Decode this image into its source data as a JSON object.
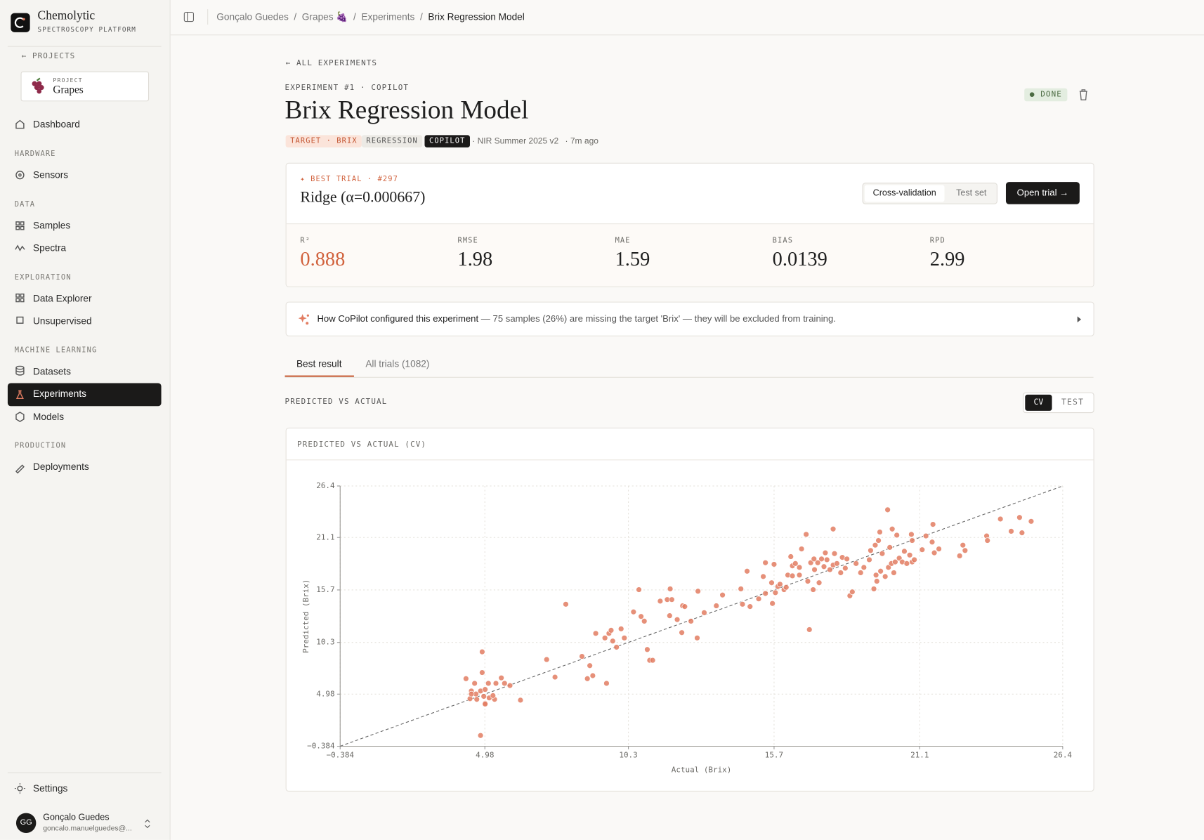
{
  "brand": {
    "name": "Chemolytic",
    "tagline": "SPECTROSCOPY PLATFORM"
  },
  "sidebar": {
    "back": "PROJECTS",
    "project": {
      "label": "PROJECT",
      "name": "Grapes"
    },
    "dashboard": "Dashboard",
    "sections": [
      {
        "title": "HARDWARE",
        "items": [
          "Sensors"
        ]
      },
      {
        "title": "DATA",
        "items": [
          "Samples",
          "Spectra"
        ]
      },
      {
        "title": "EXPLORATION",
        "items": [
          "Data Explorer",
          "Unsupervised"
        ]
      },
      {
        "title": "MACHINE LEARNING",
        "items": [
          "Datasets",
          "Experiments",
          "Models"
        ]
      },
      {
        "title": "PRODUCTION",
        "items": [
          "Deployments"
        ]
      }
    ],
    "settings": "Settings",
    "user": {
      "initials": "GG",
      "name": "Gonçalo Guedes",
      "email": "goncalo.manuelguedes@..."
    }
  },
  "breadcrumb": [
    "Gonçalo Guedes",
    "Grapes 🍇",
    "Experiments",
    "Brix Regression Model"
  ],
  "header": {
    "back": "ALL EXPERIMENTS",
    "eyebrow": "EXPERIMENT #1 · COPILOT",
    "title": "Brix Regression Model",
    "status": "DONE",
    "tags": [
      "TARGET · BRIX",
      "REGRESSION",
      "COPILOT"
    ],
    "dataset": "· NIR Summer 2025 v2",
    "time": "· 7m ago"
  },
  "best_trial": {
    "label": "✦ BEST TRIAL · #297",
    "model": "Ridge (α=0.000667)",
    "toggle": [
      "Cross-validation",
      "Test set"
    ],
    "button": "Open trial →",
    "metrics": [
      {
        "label": "R²",
        "value": 0.888
      },
      {
        "label": "RMSE",
        "value": 1.98
      },
      {
        "label": "MAE",
        "value": 1.59
      },
      {
        "label": "BIAS",
        "value": 0.0139
      },
      {
        "label": "RPD",
        "value": 2.99
      }
    ]
  },
  "notice": {
    "title": "How CoPilot configured this experiment",
    "text": "— 75 samples (26%) are missing the target 'Brix' — they will be excluded from training."
  },
  "tabs": [
    "Best result",
    "All trials (1082)"
  ],
  "section": {
    "title": "PREDICTED VS ACTUAL",
    "toggle": [
      "CV",
      "TEST"
    ]
  },
  "chart_data": {
    "type": "scatter",
    "title": "PREDICTED VS ACTUAL (CV)",
    "x_label": "Actual (Brix)",
    "y_label": "Predicted (Brix)",
    "color": "#e27d62",
    "grid": true,
    "xlim": [
      -0.384,
      26.4
    ],
    "ylim": [
      -0.384,
      26.4
    ],
    "xticks": [
      {
        "value": -0.384,
        "label": "−0.384"
      },
      4.98,
      10.3,
      15.7,
      21.1,
      26.4
    ],
    "yticks": [
      {
        "value": -0.384,
        "label": "−0.384"
      },
      4.98,
      10.3,
      15.7,
      21.1,
      26.4
    ],
    "x": [
      4.28,
      4.6,
      4.88,
      4.88,
      4.48,
      4.65,
      4.82,
      4.99,
      4.43,
      4.68,
      4.94,
      5.14,
      5.34,
      4.99,
      5.28,
      4.82,
      5.11,
      5.39,
      5.59,
      5.71,
      5.91,
      6.3,
      4.99,
      4.48,
      7.27,
      7.58,
      7.98,
      8.58,
      8.78,
      8.87,
      8.98,
      9.09,
      9.49,
      9.43,
      9.58,
      9.66,
      9.72,
      9.86,
      10.03,
      10.15,
      10.49,
      10.69,
      10.77,
      10.89,
      11.0,
      11.09,
      11.2,
      11.48,
      11.74,
      11.85,
      11.91,
      11.83,
      12.11,
      12.31,
      12.39,
      12.28,
      12.62,
      12.88,
      12.85,
      13.11,
      13.56,
      13.79,
      14.47,
      14.53,
      14.7,
      14.81,
      15.13,
      15.3,
      15.38,
      15.38,
      15.61,
      15.7,
      15.75,
      15.64,
      15.84,
      15.92,
      16.07,
      16.15,
      16.21,
      16.32,
      16.38,
      16.38,
      16.49,
      16.64,
      16.64,
      16.72,
      16.89,
      16.95,
      17.01,
      17.06,
      17.15,
      17.18,
      17.2,
      17.32,
      17.37,
      17.46,
      17.55,
      17.6,
      17.66,
      17.77,
      17.89,
      17.89,
      17.94,
      18.03,
      18.17,
      18.23,
      18.34,
      18.4,
      18.51,
      18.6,
      18.74,
      18.91,
      19.03,
      19.23,
      19.28,
      19.4,
      19.45,
      19.48,
      19.51,
      19.57,
      19.62,
      19.65,
      19.71,
      19.82,
      19.91,
      19.94,
      19.99,
      20.05,
      20.08,
      20.14,
      20.19,
      20.25,
      20.34,
      20.45,
      20.53,
      20.62,
      20.73,
      20.79,
      20.82,
      20.82,
      20.9,
      21.19,
      21.33,
      21.56,
      21.59,
      21.64,
      21.81,
      22.58,
      22.7,
      22.78,
      23.58,
      23.61,
      24.09,
      24.49,
      24.8,
      24.89,
      25.23
    ],
    "values": [
      6.57,
      6.09,
      7.2,
      9.33,
      5.3,
      4.99,
      5.3,
      5.46,
      4.51,
      4.44,
      4.75,
      4.59,
      4.44,
      4.04,
      4.83,
      0.72,
      6.09,
      6.09,
      6.65,
      6.09,
      5.86,
      4.36,
      3.96,
      4.99,
      8.54,
      6.73,
      14.23,
      8.86,
      6.57,
      7.91,
      6.88,
      11.23,
      6.09,
      10.76,
      11.23,
      11.55,
      10.44,
      9.81,
      11.7,
      10.76,
      13.44,
      15.73,
      12.97,
      12.49,
      9.57,
      8.46,
      8.46,
      14.55,
      14.71,
      15.81,
      14.71,
      13.05,
      12.65,
      14.07,
      13.99,
      11.31,
      12.49,
      15.57,
      10.76,
      13.36,
      14.07,
      15.18,
      15.81,
      14.23,
      17.63,
      13.99,
      14.78,
      17.08,
      15.34,
      18.5,
      16.44,
      18.34,
      15.42,
      14.31,
      16.05,
      16.29,
      15.73,
      15.97,
      17.23,
      19.13,
      17.15,
      18.18,
      18.42,
      17.23,
      18.02,
      19.92,
      21.42,
      16.6,
      11.62,
      18.5,
      15.73,
      18.89,
      17.79,
      18.5,
      16.44,
      18.89,
      18.1,
      19.52,
      18.81,
      17.79,
      21.97,
      18.26,
      19.44,
      18.42,
      17.47,
      19.05,
      17.94,
      18.89,
      15.1,
      15.5,
      18.42,
      17.47,
      18.02,
      18.81,
      19.76,
      15.81,
      20.31,
      17.23,
      16.6,
      20.79,
      21.66,
      17.63,
      19.44,
      17.08,
      23.95,
      18.02,
      20.08,
      18.42,
      21.97,
      17.47,
      18.58,
      21.34,
      18.97,
      18.58,
      19.68,
      18.42,
      19.29,
      21.42,
      20.79,
      18.58,
      18.81,
      19.84,
      21.26,
      20.63,
      22.45,
      19.52,
      19.92,
      19.21,
      20.31,
      19.76,
      21.26,
      20.79,
      23.0,
      21.74,
      23.16,
      21.58,
      22.76
    ]
  }
}
